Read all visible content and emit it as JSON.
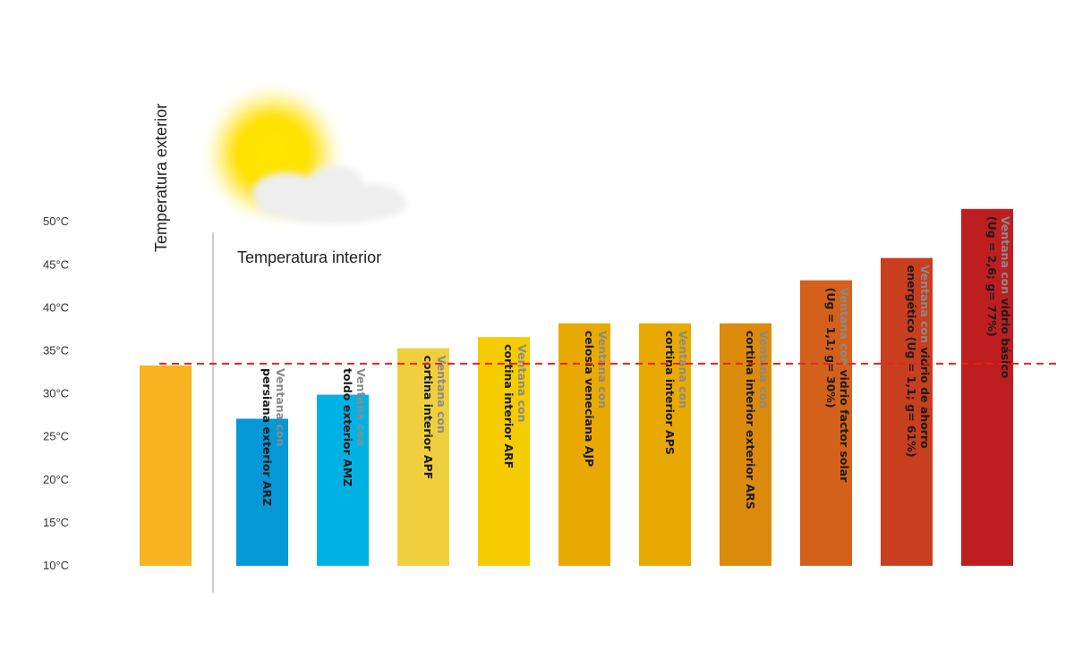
{
  "chart_data": {
    "type": "bar",
    "title": "",
    "xlabel": "",
    "ylabel": "",
    "ylim": [
      10,
      51
    ],
    "yticks": [
      "10°C",
      "15°C",
      "20°C",
      "25°C",
      "30°C",
      "35°C",
      "40°C",
      "45°C",
      "50°C"
    ],
    "ytick_values": [
      10,
      15,
      20,
      25,
      30,
      35,
      40,
      45,
      50
    ],
    "outside_label": "Temperatura exterior",
    "inside_label": "Temperatura interior",
    "reference_line": {
      "value": 33.5,
      "color": "#e52421",
      "style": "dashed"
    },
    "grid": false,
    "legend": "none",
    "outside_bar": {
      "value": 33.3,
      "color": "#f8b421"
    },
    "categories": [
      {
        "line1_a": "Ventana con",
        "line1_b": "",
        "line2": "persiana exterior ARZ",
        "value": 27.1,
        "color": "#0498d6"
      },
      {
        "line1_a": "Ventana con",
        "line1_b": "",
        "line2": "toldo exterior AMZ",
        "value": 29.9,
        "color": "#00b2e3"
      },
      {
        "line1_a": "Ventana con",
        "line1_b": "",
        "line2": "cortina interior APF",
        "value": 35.3,
        "color": "#f0cf3e"
      },
      {
        "line1_a": "Ventana con",
        "line1_b": "",
        "line2": "cortina interior ARF",
        "value": 36.6,
        "color": "#f5cc00"
      },
      {
        "line1_a": "Ventana con",
        "line1_b": "",
        "line2": "celosía veneciana AJP",
        "value": 38.2,
        "color": "#e8a900"
      },
      {
        "line1_a": "Ventana con",
        "line1_b": "",
        "line2": "cortina interior APS",
        "value": 38.2,
        "color": "#e8a900"
      },
      {
        "line1_a": "Ventana con",
        "line1_b": "",
        "line2": "cortina interior exterior ARS",
        "value": 38.2,
        "color": "#dc8a0c"
      },
      {
        "line1_a": "Ventana con",
        "line1_b": " vidrio factor solar",
        "line2": "(Ug = 1,1; g= 30%)",
        "value": 43.2,
        "color": "#d4611b"
      },
      {
        "line1_a": "Ventana con",
        "line1_b": " vidrio de ahorro",
        "line2": "energético (Ug = 1,1; g= 61%)",
        "value": 45.8,
        "color": "#c83e1f"
      },
      {
        "line1_a": "Ventana con",
        "line1_b": " vidrio básico",
        "line2": "(Ug = 2,6; g= 77%)",
        "value": 51.5,
        "color": "#be1e20"
      }
    ]
  }
}
